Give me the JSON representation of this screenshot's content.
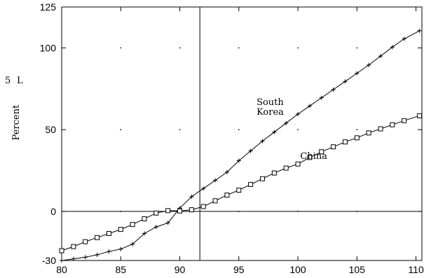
{
  "chart_data": {
    "type": "line",
    "title": "",
    "xlabel": "",
    "ylabel": "Percent",
    "xlim": [
      80,
      110.5
    ],
    "ylim": [
      -30,
      125
    ],
    "x_ticks": [
      80,
      85,
      90,
      95,
      100,
      105,
      110
    ],
    "y_ticks": [
      -30,
      0,
      50,
      100,
      125
    ],
    "x_tick_labels": [
      "80",
      "85",
      "90",
      "95",
      "100",
      "105",
      "110"
    ],
    "y_tick_labels": [
      "-30",
      "0",
      "50",
      "100",
      "125"
    ],
    "vertical_line_x": 91.7,
    "zero_line": true,
    "grid": "dots",
    "left_margin_marks": [
      "5",
      "L"
    ],
    "annotations": [
      {
        "text": "South",
        "x": 96.5,
        "y": 65
      },
      {
        "text": "Korea",
        "x": 96.5,
        "y": 59
      },
      {
        "text": "China",
        "x": 100.2,
        "y": 32
      }
    ],
    "series": [
      {
        "name": "South Korea",
        "marker": "plus",
        "x": [
          80,
          81,
          82,
          83,
          84,
          85,
          86,
          87,
          88,
          89,
          90,
          91,
          92,
          93,
          94,
          95,
          96,
          97,
          98,
          99,
          100,
          101,
          102,
          103,
          104,
          105,
          106,
          107,
          108,
          109,
          110.3
        ],
        "y": [
          -30,
          -29,
          -28,
          -26.5,
          -24.5,
          -23,
          -20,
          -13.5,
          -9.5,
          -7,
          2,
          9,
          14,
          19,
          24,
          31,
          37,
          43,
          48.5,
          54,
          59.5,
          64.5,
          69.5,
          74.5,
          79.5,
          84.5,
          89.5,
          95,
          100.5,
          105.5,
          110.5
        ]
      },
      {
        "name": "China",
        "marker": "square",
        "x": [
          80,
          81,
          82,
          83,
          84,
          85,
          86,
          87,
          88,
          89,
          90,
          91,
          92,
          93,
          94,
          95,
          96,
          97,
          98,
          99,
          100,
          101,
          102,
          103,
          104,
          105,
          106,
          107,
          108,
          109,
          110.3
        ],
        "y": [
          -24,
          -21.5,
          -18.5,
          -16,
          -13.5,
          -11,
          -8,
          -4.5,
          -1,
          0.5,
          0.3,
          1,
          3,
          6.5,
          10,
          13,
          16.5,
          20,
          23.5,
          26.5,
          29,
          33,
          36.5,
          39.5,
          42.5,
          45,
          48,
          50.5,
          53,
          55.5,
          58.5
        ]
      }
    ]
  }
}
